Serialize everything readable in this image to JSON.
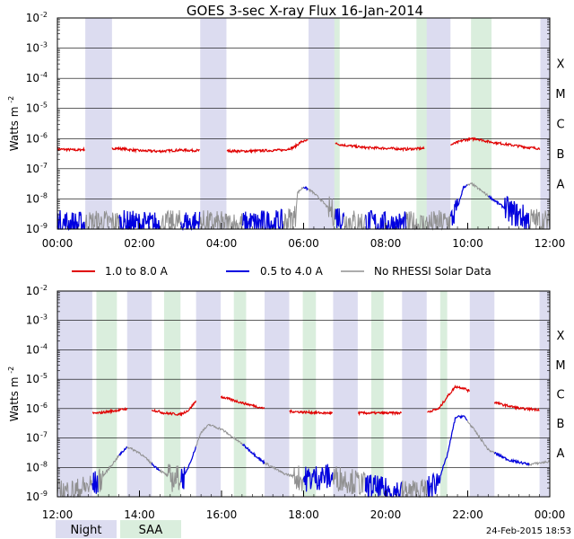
{
  "chart_data": [
    {
      "type": "line",
      "title": "GOES 3-sec X-ray Flux   16-Jan-2014",
      "ylabel": "Watts m",
      "ylabel_sup": "-2",
      "yscale": "log",
      "ylim_exp": [
        -9,
        -2
      ],
      "y_ticks": [
        {
          "base": "10",
          "exp": "-9"
        },
        {
          "base": "10",
          "exp": "-8"
        },
        {
          "base": "10",
          "exp": "-7"
        },
        {
          "base": "10",
          "exp": "-6"
        },
        {
          "base": "10",
          "exp": "-5"
        },
        {
          "base": "10",
          "exp": "-4"
        },
        {
          "base": "10",
          "exp": "-3"
        },
        {
          "base": "10",
          "exp": "-2"
        }
      ],
      "class_labels": [
        {
          "label": "A",
          "exp": -8
        },
        {
          "label": "B",
          "exp": -7
        },
        {
          "label": "C",
          "exp": -6
        },
        {
          "label": "M",
          "exp": -5
        },
        {
          "label": "X",
          "exp": -4
        }
      ],
      "xlim": [
        0,
        12
      ],
      "x_tick_labels": [
        "00:00",
        "02:00",
        "04:00",
        "06:00",
        "08:00",
        "10:00",
        "12:00"
      ],
      "night": [
        [
          0.68,
          1.33
        ],
        [
          3.48,
          4.12
        ],
        [
          6.12,
          6.77
        ],
        [
          8.95,
          9.58
        ],
        [
          11.77,
          12.0
        ]
      ],
      "saa": [
        [
          6.75,
          6.88
        ],
        [
          8.75,
          9.0
        ],
        [
          10.08,
          10.58
        ],
        [
          12.0,
          12.0
        ]
      ],
      "series": [
        {
          "name": "1.0 to 8.0 A",
          "color": "#e00000",
          "x": [
            0,
            0.5,
            1,
            1.5,
            2,
            2.5,
            3,
            3.5,
            4,
            4.5,
            5,
            5.5,
            5.75,
            5.95,
            6.2,
            6.5,
            7,
            7.5,
            8,
            8.5,
            9,
            9.5,
            9.9,
            10.2,
            10.5,
            11,
            11.5,
            12
          ],
          "y": [
            -6.35,
            -6.38,
            -6.3,
            -6.33,
            -6.4,
            -6.42,
            -6.38,
            -6.4,
            -6.4,
            -6.42,
            -6.4,
            -6.38,
            -6.3,
            -6.1,
            -6.05,
            -6.1,
            -6.22,
            -6.3,
            -6.32,
            -6.35,
            -6.32,
            -6.25,
            -6.05,
            -6.0,
            -6.1,
            -6.2,
            -6.3,
            -6.35
          ]
        },
        {
          "name": "0.5 to 4.0 A",
          "color": "#0000e0",
          "x": [
            0,
            0.5,
            1,
            1.5,
            2,
            2.5,
            3,
            3.5,
            4,
            4.5,
            5,
            5.5,
            5.8,
            5.85,
            6.0,
            6.2,
            6.4,
            6.6,
            6.8,
            7.0,
            7.3,
            7.6,
            8,
            8.5,
            9,
            9.4,
            9.6,
            9.75,
            9.9,
            10.1,
            10.4,
            10.6,
            11,
            11.5,
            12
          ],
          "y": [
            -8.8,
            -8.85,
            -8.8,
            -8.8,
            -8.85,
            -8.85,
            -8.8,
            -8.8,
            -8.85,
            -8.85,
            -8.8,
            -8.8,
            -8.6,
            -7.8,
            -7.6,
            -7.75,
            -8.0,
            -8.3,
            -8.55,
            -8.7,
            -8.8,
            -8.8,
            -8.85,
            -8.85,
            -8.85,
            -8.8,
            -8.7,
            -8.3,
            -7.6,
            -7.5,
            -7.8,
            -8.0,
            -8.4,
            -8.7,
            -8.8
          ]
        }
      ]
    },
    {
      "type": "line",
      "ylabel": "Watts m",
      "ylabel_sup": "-2",
      "yscale": "log",
      "ylim_exp": [
        -9,
        -2
      ],
      "y_ticks": [
        {
          "base": "10",
          "exp": "-9"
        },
        {
          "base": "10",
          "exp": "-8"
        },
        {
          "base": "10",
          "exp": "-7"
        },
        {
          "base": "10",
          "exp": "-6"
        },
        {
          "base": "10",
          "exp": "-5"
        },
        {
          "base": "10",
          "exp": "-4"
        },
        {
          "base": "10",
          "exp": "-3"
        },
        {
          "base": "10",
          "exp": "-2"
        }
      ],
      "class_labels": [
        {
          "label": "A",
          "exp": -8
        },
        {
          "label": "B",
          "exp": -7
        },
        {
          "label": "C",
          "exp": -6
        },
        {
          "label": "M",
          "exp": -5
        },
        {
          "label": "X",
          "exp": -4
        }
      ],
      "xlim": [
        12,
        24
      ],
      "x_tick_labels": [
        "12:00",
        "14:00",
        "16:00",
        "18:00",
        "20:00",
        "22:00",
        "00:00"
      ],
      "night": [
        [
          12.0,
          12.85
        ],
        [
          13.7,
          14.3
        ],
        [
          15.38,
          15.98
        ],
        [
          17.05,
          17.65
        ],
        [
          18.72,
          19.32
        ],
        [
          20.4,
          21.0
        ],
        [
          22.05,
          22.65
        ],
        [
          23.75,
          24.0
        ]
      ],
      "saa": [
        [
          12.95,
          13.45
        ],
        [
          14.6,
          15.0
        ],
        [
          16.3,
          16.6
        ],
        [
          17.98,
          18.3
        ],
        [
          19.65,
          19.95
        ],
        [
          21.33,
          21.5
        ]
      ],
      "series": [
        {
          "name": "1.0 to 8.0 A",
          "color": "#e00000",
          "x": [
            12,
            12.5,
            13,
            13.5,
            13.8,
            14.2,
            14.6,
            15,
            15.2,
            15.4,
            15.7,
            16,
            16.5,
            17,
            17.5,
            18,
            18.5,
            19,
            19.5,
            20,
            20.5,
            21,
            21.3,
            21.5,
            21.7,
            21.9,
            22.3,
            22.8,
            23.3,
            24
          ],
          "y": [
            -6.2,
            -6.2,
            -6.15,
            -6.05,
            -5.98,
            -6.0,
            -6.15,
            -6.2,
            -6.05,
            -5.7,
            -5.55,
            -5.6,
            -5.8,
            -5.98,
            -6.08,
            -6.12,
            -6.15,
            -6.15,
            -6.15,
            -6.15,
            -6.15,
            -6.12,
            -6.0,
            -5.6,
            -5.25,
            -5.3,
            -5.6,
            -5.85,
            -6.0,
            -6.05
          ]
        },
        {
          "name": "0.5 to 4.0 A",
          "color": "#0000e0",
          "x": [
            12,
            12.5,
            13,
            13.5,
            13.7,
            14.0,
            14.4,
            14.8,
            15.1,
            15.3,
            15.5,
            15.7,
            16,
            16.5,
            17,
            17.5,
            18,
            18.5,
            19,
            19.5,
            20,
            20.5,
            21,
            21.3,
            21.5,
            21.7,
            21.9,
            22.2,
            22.5,
            23,
            23.5,
            24
          ],
          "y": [
            -8.85,
            -8.8,
            -8.5,
            -7.6,
            -7.3,
            -7.5,
            -8.0,
            -8.4,
            -8.3,
            -7.6,
            -6.8,
            -6.55,
            -6.7,
            -7.2,
            -7.8,
            -8.2,
            -8.4,
            -8.3,
            -8.4,
            -8.6,
            -8.8,
            -8.85,
            -8.8,
            -8.4,
            -7.6,
            -6.3,
            -6.25,
            -6.8,
            -7.4,
            -7.75,
            -7.9,
            -7.8
          ]
        }
      ]
    }
  ],
  "legend": {
    "items": [
      {
        "label": "1.0 to 8.0 A",
        "color": "#e00000"
      },
      {
        "label": "0.5 to 4.0 A",
        "color": "#0000e0"
      },
      {
        "label": "No RHESSI Solar Data",
        "color": "#909090"
      }
    ]
  },
  "key": {
    "night": "Night",
    "saa": "SAA"
  },
  "colors": {
    "night": "#dcdcf0",
    "saa": "#daeedd",
    "grid": "#000000"
  },
  "footer": {
    "timestamp": "24-Feb-2015 18:53"
  }
}
